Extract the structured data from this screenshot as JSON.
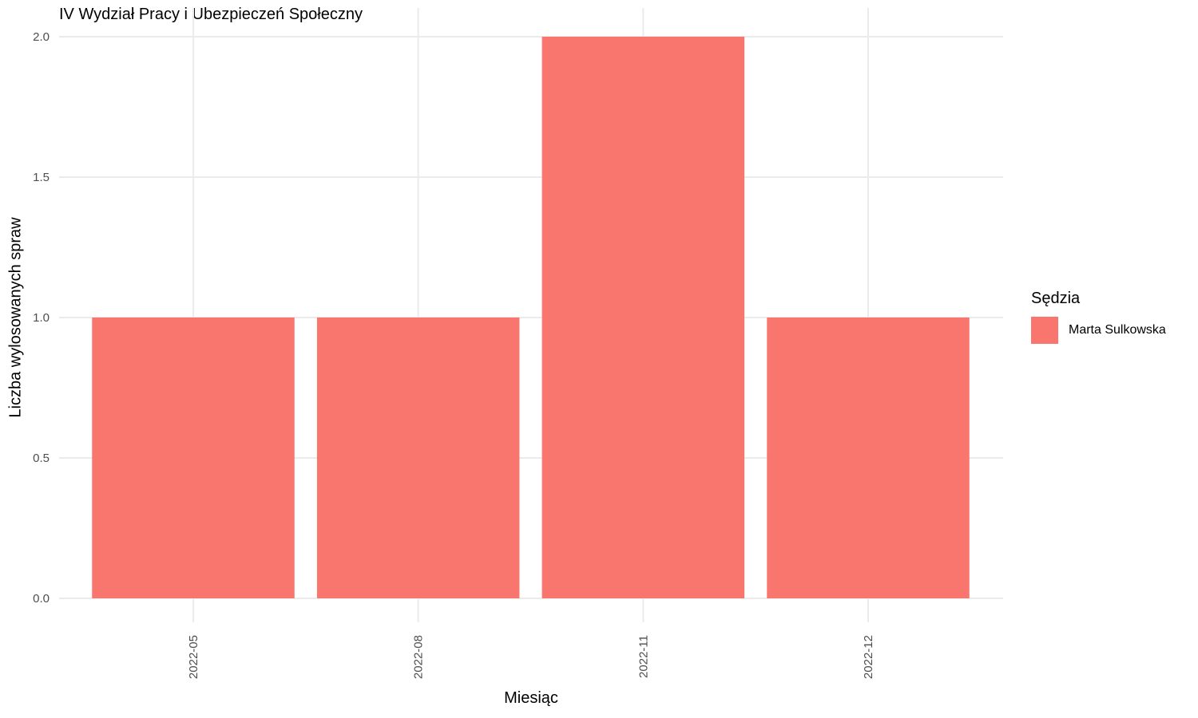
{
  "chart_data": {
    "type": "bar",
    "title": "IV Wydział Pracy i Ubezpieczeń Społeczny",
    "xlabel": "Miesiąc",
    "ylabel": "Liczba wylosowanych spraw",
    "categories": [
      "2022-05",
      "2022-08",
      "2022-11",
      "2022-12"
    ],
    "series": [
      {
        "name": "Marta Sulkowska",
        "values": [
          1,
          1,
          2,
          1
        ]
      }
    ],
    "ylim": [
      0,
      2.1
    ],
    "yticks": [
      "0.0",
      "0.5",
      "1.0",
      "1.5",
      "2.0"
    ],
    "grid": true,
    "bar_color": "#F8766D",
    "legend": {
      "title": "Sędzia",
      "position": "right"
    }
  }
}
